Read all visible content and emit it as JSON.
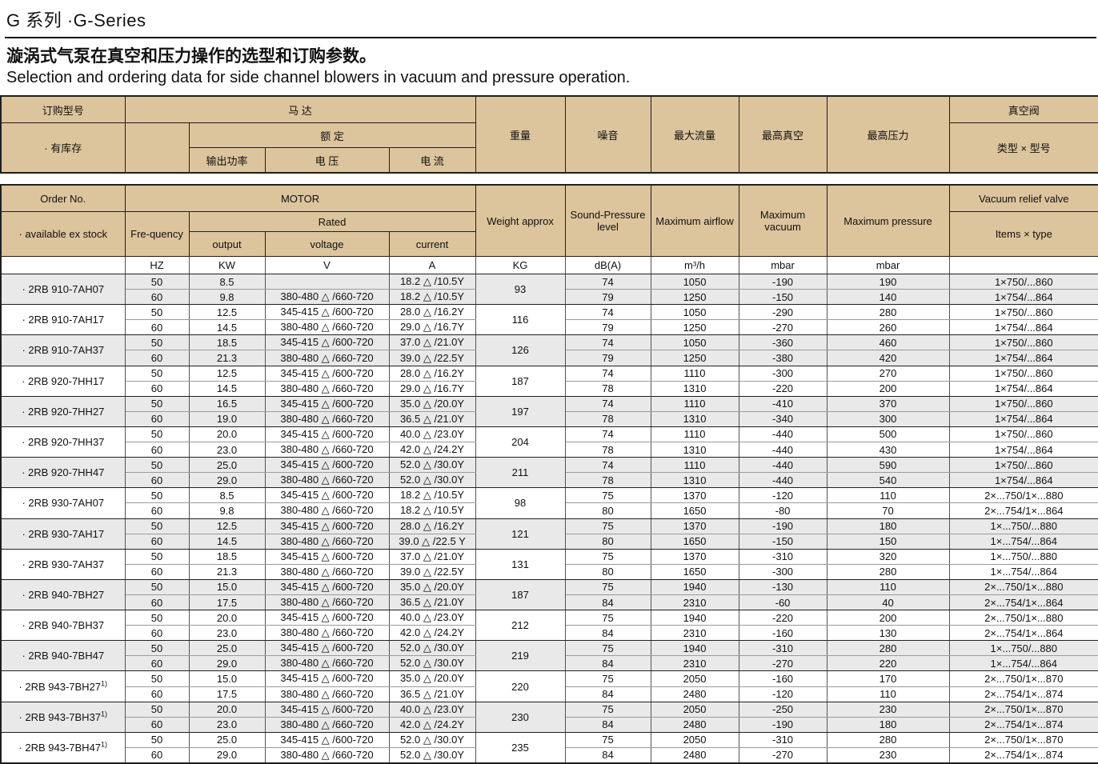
{
  "page": {
    "title": "G 系列 ·G-Series",
    "subtitle_cn": "漩涡式气泵在真空和压力操作的选型和订购参数。",
    "subtitle_en": "Selection and ordering data for side channel blowers in vacuum and pressure operation."
  },
  "colors": {
    "header_bg": "#dcc49c",
    "row_alt_bg": "#e9e9e9",
    "border_dark": "#1f1f1f",
    "border_light": "#9b9b9b"
  },
  "misc": {
    "bullet": "·"
  },
  "header_cn": {
    "order_no": "订购型号",
    "stock": "· 有库存",
    "motor": "马  达",
    "rated": "额  定",
    "output": "输出功率",
    "voltage": "电  压",
    "current": "电  流",
    "weight": "重量",
    "noise": "噪音",
    "airflow": "最大流量",
    "vacuum": "最高真空",
    "pressure": "最高压力",
    "valve": "真空阀",
    "valve_type": "类型 × 型号"
  },
  "header_en": {
    "order_no": "Order No.",
    "stock": "· available ex stock",
    "motor": "MOTOR",
    "rated": "Rated",
    "frequency": "Fre-quency",
    "output": "output",
    "voltage": "voltage",
    "current": "current",
    "weight": "Weight approx",
    "noise": "Sound-Pressure level",
    "airflow": "Maximum airflow",
    "vacuum": "Maximum vacuum",
    "pressure": "Maximum pressure",
    "valve": "Vacuum relief valve",
    "valve_type": "Items × type"
  },
  "units": {
    "frequency": "HZ",
    "output": "KW",
    "voltage": "V",
    "current": "A",
    "weight": "KG",
    "noise": "dB(A)",
    "airflow": "m³/h",
    "vacuum": "mbar",
    "pressure": "mbar"
  },
  "groups": [
    {
      "order": "2RB 910-7AH07",
      "note": "",
      "weight": "93",
      "rows": [
        {
          "hz": "50",
          "output": "8.5",
          "voltage": "",
          "current": "18.2 △ /10.5Y",
          "sound": "74",
          "airflow": "1050",
          "vacuum": "-190",
          "pressure": "190",
          "valve": "1×750/...860"
        },
        {
          "hz": "60",
          "output": "9.8",
          "voltage": "380-480 △ /660-720",
          "current": "18.2 △ /10.5Y",
          "sound": "79",
          "airflow": "1250",
          "vacuum": "-150",
          "pressure": "140",
          "valve": "1×754/...864"
        }
      ]
    },
    {
      "order": "2RB 910-7AH17",
      "note": "",
      "weight": "116",
      "rows": [
        {
          "hz": "50",
          "output": "12.5",
          "voltage": "345-415 △ /600-720",
          "current": "28.0 △ /16.2Y",
          "sound": "74",
          "airflow": "1050",
          "vacuum": "-290",
          "pressure": "280",
          "valve": "1×750/...860"
        },
        {
          "hz": "60",
          "output": "14.5",
          "voltage": "380-480 △ /660-720",
          "current": "29.0 △ /16.7Y",
          "sound": "79",
          "airflow": "1250",
          "vacuum": "-270",
          "pressure": "260",
          "valve": "1×754/...864"
        }
      ]
    },
    {
      "order": "2RB 910-7AH37",
      "note": "",
      "weight": "126",
      "rows": [
        {
          "hz": "50",
          "output": "18.5",
          "voltage": "345-415 △ /600-720",
          "current": "37.0 △ /21.0Y",
          "sound": "74",
          "airflow": "1050",
          "vacuum": "-360",
          "pressure": "460",
          "valve": "1×750/...860"
        },
        {
          "hz": "60",
          "output": "21.3",
          "voltage": "380-480 △ /660-720",
          "current": "39.0 △ /22.5Y",
          "sound": "79",
          "airflow": "1250",
          "vacuum": "-380",
          "pressure": "420",
          "valve": "1×754/...864"
        }
      ]
    },
    {
      "order": "2RB 920-7HH17",
      "note": "",
      "weight": "187",
      "rows": [
        {
          "hz": "50",
          "output": "12.5",
          "voltage": "345-415 △ /600-720",
          "current": "28.0 △ /16.2Y",
          "sound": "74",
          "airflow": "1110",
          "vacuum": "-300",
          "pressure": "270",
          "valve": "1×750/...860"
        },
        {
          "hz": "60",
          "output": "14.5",
          "voltage": "380-480 △ /660-720",
          "current": "29.0 △ /16.7Y",
          "sound": "78",
          "airflow": "1310",
          "vacuum": "-220",
          "pressure": "200",
          "valve": "1×754/...864"
        }
      ]
    },
    {
      "order": "2RB 920-7HH27",
      "note": "",
      "weight": "197",
      "rows": [
        {
          "hz": "50",
          "output": "16.5",
          "voltage": "345-415 △ /600-720",
          "current": "35.0 △ /20.0Y",
          "sound": "74",
          "airflow": "1110",
          "vacuum": "-410",
          "pressure": "370",
          "valve": "1×750/...860"
        },
        {
          "hz": "60",
          "output": "19.0",
          "voltage": "380-480 △ /660-720",
          "current": "36.5 △ /21.0Y",
          "sound": "78",
          "airflow": "1310",
          "vacuum": "-340",
          "pressure": "300",
          "valve": "1×754/...864"
        }
      ]
    },
    {
      "order": "2RB 920-7HH37",
      "note": "",
      "weight": "204",
      "rows": [
        {
          "hz": "50",
          "output": "20.0",
          "voltage": "345-415 △ /600-720",
          "current": "40.0 △ /23.0Y",
          "sound": "74",
          "airflow": "1110",
          "vacuum": "-440",
          "pressure": "500",
          "valve": "1×750/...860"
        },
        {
          "hz": "60",
          "output": "23.0",
          "voltage": "380-480 △ /660-720",
          "current": "42.0 △ /24.2Y",
          "sound": "78",
          "airflow": "1310",
          "vacuum": "-440",
          "pressure": "430",
          "valve": "1×754/...864"
        }
      ]
    },
    {
      "order": "2RB 920-7HH47",
      "note": "",
      "weight": "211",
      "rows": [
        {
          "hz": "50",
          "output": "25.0",
          "voltage": "345-415 △ /600-720",
          "current": "52.0 △ /30.0Y",
          "sound": "74",
          "airflow": "1110",
          "vacuum": "-440",
          "pressure": "590",
          "valve": "1×750/...860"
        },
        {
          "hz": "60",
          "output": "29.0",
          "voltage": "380-480 △ /660-720",
          "current": "52.0 △ /30.0Y",
          "sound": "78",
          "airflow": "1310",
          "vacuum": "-440",
          "pressure": "540",
          "valve": "1×754/...864"
        }
      ]
    },
    {
      "order": "2RB 930-7AH07",
      "note": "",
      "weight": "98",
      "rows": [
        {
          "hz": "50",
          "output": "8.5",
          "voltage": "345-415 △ /600-720",
          "current": "18.2 △ /10.5Y",
          "sound": "75",
          "airflow": "1370",
          "vacuum": "-120",
          "pressure": "110",
          "valve": "2×...750/1×...880"
        },
        {
          "hz": "60",
          "output": "9.8",
          "voltage": "380-480 △ /660-720",
          "current": "18.2 △ /10.5Y",
          "sound": "80",
          "airflow": "1650",
          "vacuum": "-80",
          "pressure": "70",
          "valve": "2×...754/1×...864"
        }
      ]
    },
    {
      "order": "2RB 930-7AH17",
      "note": "",
      "weight": "121",
      "rows": [
        {
          "hz": "50",
          "output": "12.5",
          "voltage": "345-415 △ /600-720",
          "current": "28.0 △ /16.2Y",
          "sound": "75",
          "airflow": "1370",
          "vacuum": "-190",
          "pressure": "180",
          "valve": "1×...750/...880"
        },
        {
          "hz": "60",
          "output": "14.5",
          "voltage": "380-480 △ /660-720",
          "current": "39.0 △ /22.5 Y",
          "sound": "80",
          "airflow": "1650",
          "vacuum": "-150",
          "pressure": "150",
          "valve": "1×...754/...864"
        }
      ]
    },
    {
      "order": "2RB 930-7AH37",
      "note": "",
      "weight": "131",
      "rows": [
        {
          "hz": "50",
          "output": "18.5",
          "voltage": "345-415 △ /600-720",
          "current": "37.0 △ /21.0Y",
          "sound": "75",
          "airflow": "1370",
          "vacuum": "-310",
          "pressure": "320",
          "valve": "1×...750/...880"
        },
        {
          "hz": "60",
          "output": "21.3",
          "voltage": "380-480 △ /660-720",
          "current": "39.0 △ /22.5Y",
          "sound": "80",
          "airflow": "1650",
          "vacuum": "-300",
          "pressure": "280",
          "valve": "1×...754/...864"
        }
      ]
    },
    {
      "order": "2RB 940-7BH27",
      "note": "",
      "weight": "187",
      "rows": [
        {
          "hz": "50",
          "output": "15.0",
          "voltage": "345-415 △ /600-720",
          "current": "35.0 △ /20.0Y",
          "sound": "75",
          "airflow": "1940",
          "vacuum": "-130",
          "pressure": "110",
          "valve": "2×...750/1×...880"
        },
        {
          "hz": "60",
          "output": "17.5",
          "voltage": "380-480 △ /660-720",
          "current": "36.5 △ /21.0Y",
          "sound": "84",
          "airflow": "2310",
          "vacuum": "-60",
          "pressure": "40",
          "valve": "2×...754/1×...864"
        }
      ]
    },
    {
      "order": "2RB 940-7BH37",
      "note": "",
      "weight": "212",
      "rows": [
        {
          "hz": "50",
          "output": "20.0",
          "voltage": "345-415 △ /600-720",
          "current": "40.0 △ /23.0Y",
          "sound": "75",
          "airflow": "1940",
          "vacuum": "-220",
          "pressure": "200",
          "valve": "2×...750/1×...880"
        },
        {
          "hz": "60",
          "output": "23.0",
          "voltage": "380-480 △ /660-720",
          "current": "42.0 △ /24.2Y",
          "sound": "84",
          "airflow": "2310",
          "vacuum": "-160",
          "pressure": "130",
          "valve": "2×...754/1×...864"
        }
      ]
    },
    {
      "order": "2RB 940-7BH47",
      "note": "",
      "weight": "219",
      "rows": [
        {
          "hz": "50",
          "output": "25.0",
          "voltage": "345-415 △ /600-720",
          "current": "52.0 △ /30.0Y",
          "sound": "75",
          "airflow": "1940",
          "vacuum": "-310",
          "pressure": "280",
          "valve": "1×...750/...880"
        },
        {
          "hz": "60",
          "output": "29.0",
          "voltage": "380-480 △ /660-720",
          "current": "52.0 △ /30.0Y",
          "sound": "84",
          "airflow": "2310",
          "vacuum": "-270",
          "pressure": "220",
          "valve": "1×...754/...864"
        }
      ]
    },
    {
      "order": "2RB 943-7BH27",
      "note": "1)",
      "weight": "220",
      "rows": [
        {
          "hz": "50",
          "output": "15.0",
          "voltage": "345-415 △ /600-720",
          "current": "35.0 △ /20.0Y",
          "sound": "75",
          "airflow": "2050",
          "vacuum": "-160",
          "pressure": "170",
          "valve": "2×...750/1×...870"
        },
        {
          "hz": "60",
          "output": "17.5",
          "voltage": "380-480 △ /660-720",
          "current": "36.5 △ /21.0Y",
          "sound": "84",
          "airflow": "2480",
          "vacuum": "-120",
          "pressure": "110",
          "valve": "2×...754/1×...874"
        }
      ]
    },
    {
      "order": "2RB 943-7BH37",
      "note": "1)",
      "weight": "230",
      "rows": [
        {
          "hz": "50",
          "output": "20.0",
          "voltage": "345-415 △ /600-720",
          "current": "40.0 △ /23.0Y",
          "sound": "75",
          "airflow": "2050",
          "vacuum": "-250",
          "pressure": "230",
          "valve": "2×...750/1×...870"
        },
        {
          "hz": "60",
          "output": "23.0",
          "voltage": "380-480 △ /660-720",
          "current": "42.0 △ /24.2Y",
          "sound": "84",
          "airflow": "2480",
          "vacuum": "-190",
          "pressure": "180",
          "valve": "2×...754/1×...874"
        }
      ]
    },
    {
      "order": "2RB 943-7BH47",
      "note": "1)",
      "weight": "235",
      "rows": [
        {
          "hz": "50",
          "output": "25.0",
          "voltage": "345-415 △ /600-720",
          "current": "52.0 △ /30.0Y",
          "sound": "75",
          "airflow": "2050",
          "vacuum": "-310",
          "pressure": "280",
          "valve": "2×...750/1×...870"
        },
        {
          "hz": "60",
          "output": "29.0",
          "voltage": "380-480 △ /660-720",
          "current": "52.0 △ /30.0Y",
          "sound": "84",
          "airflow": "2480",
          "vacuum": "-270",
          "pressure": "230",
          "valve": "2×...754/1×...874"
        }
      ]
    }
  ]
}
